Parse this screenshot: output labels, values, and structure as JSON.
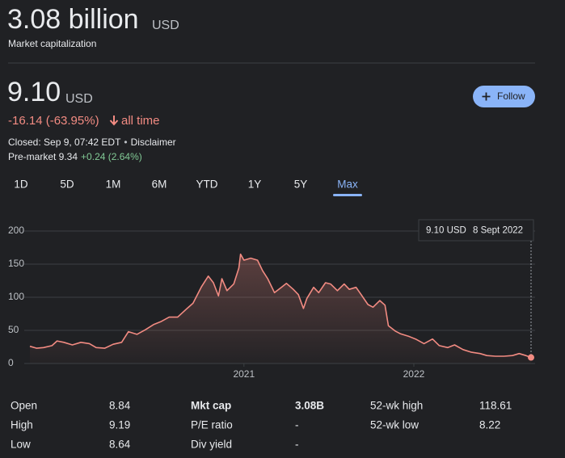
{
  "market_cap": {
    "value": "3.08 billion",
    "currency": "USD",
    "label": "Market capitalization"
  },
  "price": {
    "value": "9.10",
    "currency": "USD",
    "change": "-16.14 (-63.95%)",
    "period": "all time",
    "closed": "Closed: Sep 9, 07:42 EDT",
    "separator": "•",
    "disclaimer": "Disclaimer",
    "premarket": "Pre-market 9.34",
    "premarket_change": "+0.24 (2.64%)"
  },
  "follow_button": "Follow",
  "ranges": {
    "items": [
      "1D",
      "5D",
      "1M",
      "6M",
      "YTD",
      "1Y",
      "5Y",
      "Max"
    ],
    "selected": 7
  },
  "tooltip": {
    "price": "9.10 USD",
    "date": "8 Sept 2022"
  },
  "chart_data": {
    "type": "line",
    "color": "#f28b82",
    "grid": true,
    "x": [
      2019.74,
      2019.78,
      2019.82,
      2019.87,
      2019.9,
      2019.94,
      2019.99,
      2020.04,
      2020.09,
      2020.13,
      2020.18,
      2020.23,
      2020.28,
      2020.32,
      2020.37,
      2020.42,
      2020.47,
      2020.51,
      2020.56,
      2020.61,
      2020.66,
      2020.7,
      2020.75,
      2020.79,
      2020.82,
      2020.85,
      2020.87,
      2020.9,
      2020.94,
      2020.97,
      2020.98,
      2021.0,
      2021.04,
      2021.08,
      2021.11,
      2021.14,
      2021.18,
      2021.22,
      2021.25,
      2021.29,
      2021.32,
      2021.35,
      2021.37,
      2021.41,
      2021.44,
      2021.48,
      2021.51,
      2021.55,
      2021.59,
      2021.62,
      2021.66,
      2021.69,
      2021.73,
      2021.76,
      2021.8,
      2021.83,
      2021.85,
      2021.89,
      2021.92,
      2021.97,
      2022.01,
      2022.06,
      2022.11,
      2022.15,
      2022.2,
      2022.24,
      2022.29,
      2022.34,
      2022.39,
      2022.43,
      2022.48,
      2022.53,
      2022.58,
      2022.62,
      2022.66,
      2022.69
    ],
    "values": [
      26,
      23,
      24,
      27,
      34,
      32,
      28,
      32,
      30,
      24,
      23,
      29,
      32,
      48,
      44,
      51,
      59,
      63,
      70,
      70,
      82,
      91,
      116,
      132,
      122,
      102,
      128,
      110,
      120,
      144,
      165,
      156,
      159,
      156,
      140,
      128,
      107,
      115,
      121,
      112,
      104,
      83,
      98,
      115,
      107,
      122,
      120,
      110,
      120,
      112,
      115,
      104,
      89,
      85,
      95,
      88,
      57,
      49,
      45,
      41,
      37,
      30,
      37,
      27,
      24,
      28,
      21,
      17,
      15,
      12,
      11,
      11,
      12,
      15,
      12,
      9.1
    ],
    "xlim": [
      2019.74,
      2022.69
    ],
    "xticks": [
      2021,
      2022
    ],
    "ylim": [
      0,
      200
    ],
    "yticks": [
      0,
      50,
      100,
      150,
      200
    ]
  },
  "stats": {
    "rows": [
      [
        [
          "Open",
          "8.84"
        ],
        [
          "Mkt cap",
          "3.08B"
        ],
        [
          "52-wk high",
          "118.61"
        ]
      ],
      [
        [
          "High",
          "9.19"
        ],
        [
          "P/E ratio",
          "-"
        ],
        [
          "52-wk low",
          "8.22"
        ]
      ],
      [
        [
          "Low",
          "8.64"
        ],
        [
          "Div yield",
          "-"
        ]
      ]
    ]
  }
}
